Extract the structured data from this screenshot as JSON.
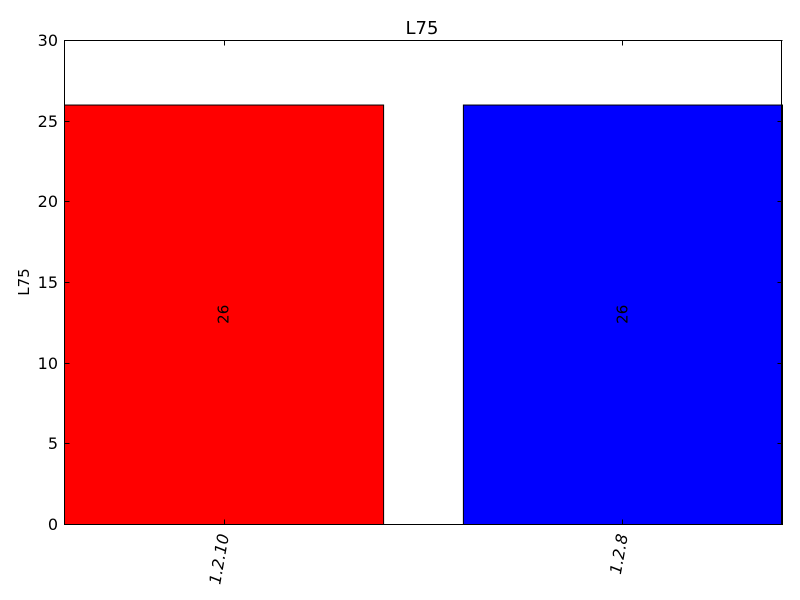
{
  "chart_data": {
    "type": "bar",
    "title": "L75",
    "xlabel": "",
    "ylabel": "L75",
    "categories": [
      "1.2.10",
      "1.2.8"
    ],
    "values": [
      26,
      26
    ],
    "data_labels": [
      "26",
      "26"
    ],
    "colors": [
      "#ff0000",
      "#0000ff"
    ],
    "ylim": [
      0,
      30
    ],
    "yticks": [
      0,
      5,
      10,
      15,
      20,
      25,
      30
    ],
    "ytick_labels": [
      "0",
      "5",
      "10",
      "15",
      "20",
      "25",
      "30"
    ],
    "grid": false,
    "legend": "none"
  }
}
